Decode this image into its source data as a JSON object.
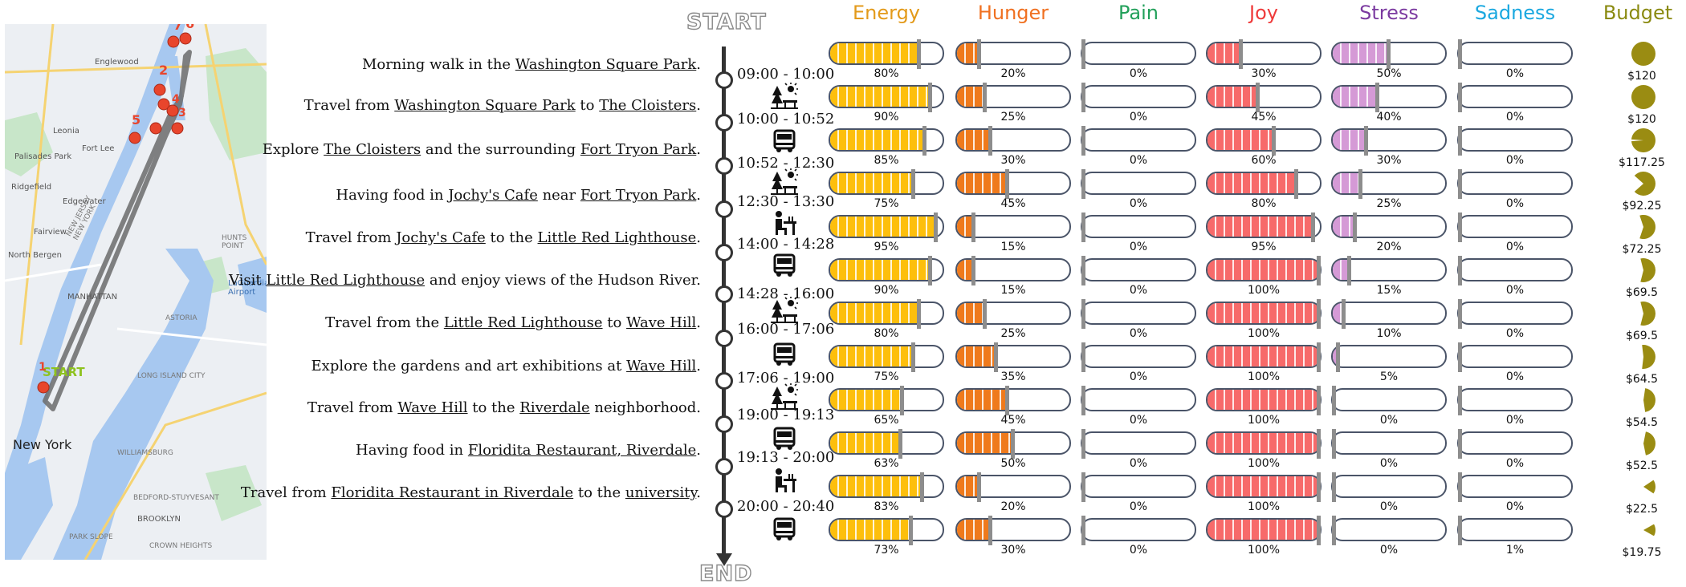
{
  "map": {
    "city_label": "New York",
    "start_label": "START",
    "markers": [
      "1",
      "2",
      "3",
      "4",
      "5",
      "6",
      "7"
    ],
    "place_labels": [
      "Englewood",
      "Leonia",
      "Palisades Park",
      "Fort Lee",
      "Ridgefield",
      "Edgewater",
      "Fairview",
      "North Bergen",
      "MANHATTAN",
      "LaGuardia Airport",
      "HUNTS POINT",
      "ASTORIA",
      "LONG ISLAND CITY",
      "WILLIAMSBURG",
      "BROOKLYN",
      "BEDFORD-STUYVESANT",
      "PARK SLOPE",
      "CROWN HEIGHTS",
      "NEW JERSEY NEW YORK"
    ]
  },
  "timeline": {
    "start": "START",
    "end": "END",
    "rows": [
      {
        "time": "09:00 - 10:00",
        "icon": "park-icon",
        "segments": [
          {
            "t": "Morning walk in the "
          },
          {
            "t": "Washington Square Park",
            "u": true
          },
          {
            "t": "."
          }
        ]
      },
      {
        "time": "10:00 - 10:52",
        "icon": "bus-icon",
        "segments": [
          {
            "t": "Travel from "
          },
          {
            "t": "Washington Square Park",
            "u": true
          },
          {
            "t": " to "
          },
          {
            "t": "The Cloisters",
            "u": true
          },
          {
            "t": "."
          }
        ]
      },
      {
        "time": "10:52 - 12:30",
        "icon": "park-icon",
        "segments": [
          {
            "t": "Explore "
          },
          {
            "t": "The Cloisters",
            "u": true
          },
          {
            "t": " and the surrounding "
          },
          {
            "t": "Fort Tryon Park",
            "u": true
          },
          {
            "t": "."
          }
        ]
      },
      {
        "time": "12:30 - 13:30",
        "icon": "dining-icon",
        "segments": [
          {
            "t": "Having food in "
          },
          {
            "t": "Jochy's Cafe",
            "u": true
          },
          {
            "t": " near "
          },
          {
            "t": "Fort Tryon Park",
            "u": true
          },
          {
            "t": "."
          }
        ]
      },
      {
        "time": "14:00 - 14:28",
        "icon": "bus-icon",
        "segments": [
          {
            "t": "Travel from "
          },
          {
            "t": "Jochy's Cafe",
            "u": true
          },
          {
            "t": " to the "
          },
          {
            "t": "Little Red Lighthouse",
            "u": true
          },
          {
            "t": "."
          }
        ]
      },
      {
        "time": "14:28 - 16:00",
        "icon": "park-icon",
        "segments": [
          {
            "t": "Visit "
          },
          {
            "t": "Little Red Lighthouse",
            "u": true
          },
          {
            "t": " and enjoy views of the Hudson River."
          }
        ]
      },
      {
        "time": "16:00 - 17:06",
        "icon": "bus-icon",
        "segments": [
          {
            "t": "Travel from the "
          },
          {
            "t": "Little Red Lighthouse",
            "u": true
          },
          {
            "t": " to "
          },
          {
            "t": "Wave Hill",
            "u": true
          },
          {
            "t": "."
          }
        ]
      },
      {
        "time": "17:06 - 19:00",
        "icon": "park-icon",
        "segments": [
          {
            "t": "Explore the gardens and art exhibitions at "
          },
          {
            "t": "Wave Hill",
            "u": true
          },
          {
            "t": "."
          }
        ]
      },
      {
        "time": "19:00 - 19:13",
        "icon": "bus-icon",
        "segments": [
          {
            "t": "Travel from "
          },
          {
            "t": "Wave Hill",
            "u": true
          },
          {
            "t": " to the "
          },
          {
            "t": "Riverdale",
            "u": true
          },
          {
            "t": " neighborhood."
          }
        ]
      },
      {
        "time": "19:13 - 20:00",
        "icon": "dining-icon",
        "segments": [
          {
            "t": "Having food in "
          },
          {
            "t": "Floridita Restaurant, Riverdale",
            "u": true
          },
          {
            "t": "."
          }
        ]
      },
      {
        "time": "20:00 - 20:40",
        "icon": "bus-icon",
        "segments": [
          {
            "t": "Travel from "
          },
          {
            "t": "Floridita Restaurant in Riverdale",
            "u": true
          },
          {
            "t": " to the "
          },
          {
            "t": "university",
            "u": true
          },
          {
            "t": "."
          }
        ]
      }
    ]
  },
  "emotions": {
    "headers": [
      {
        "label": "Energy",
        "color": "#e39a1a"
      },
      {
        "label": "Hunger",
        "color": "#f07020"
      },
      {
        "label": "Pain",
        "color": "#22a05a"
      },
      {
        "label": "Joy",
        "color": "#ef3b3b"
      },
      {
        "label": "Stress",
        "color": "#7b3aa0"
      },
      {
        "label": "Sadness",
        "color": "#1aa8e0"
      },
      {
        "label": "Budget",
        "color": "#8a8a10"
      }
    ],
    "fill_colors": [
      "#fdbf0c",
      "#ef7a1c",
      "#cccccc",
      "#f76a6a",
      "#d59ad6",
      "#3aa8e0"
    ],
    "rows": [
      {
        "vals": [
          80,
          20,
          0,
          30,
          50,
          0
        ],
        "labels": [
          "80%",
          "20%",
          "0%",
          "30%",
          "50%",
          "0%"
        ],
        "budget": "$120",
        "budget_frac": 1.0
      },
      {
        "vals": [
          90,
          25,
          0,
          45,
          40,
          0
        ],
        "labels": [
          "90%",
          "25%",
          "0%",
          "45%",
          "40%",
          "0%"
        ],
        "budget": "$120",
        "budget_frac": 1.0
      },
      {
        "vals": [
          85,
          30,
          0,
          60,
          30,
          0
        ],
        "labels": [
          "85%",
          "30%",
          "0%",
          "60%",
          "30%",
          "0%"
        ],
        "budget": "$117.25",
        "budget_frac": 0.977
      },
      {
        "vals": [
          75,
          45,
          0,
          80,
          25,
          0
        ],
        "labels": [
          "75%",
          "45%",
          "0%",
          "80%",
          "25%",
          "0%"
        ],
        "budget": "$92.25",
        "budget_frac": 0.769
      },
      {
        "vals": [
          95,
          15,
          0,
          95,
          20,
          0
        ],
        "labels": [
          "95%",
          "15%",
          "0%",
          "95%",
          "20%",
          "0%"
        ],
        "budget": "$72.25",
        "budget_frac": 0.602
      },
      {
        "vals": [
          90,
          15,
          0,
          100,
          15,
          0
        ],
        "labels": [
          "90%",
          "15%",
          "0%",
          "100%",
          "15%",
          "0%"
        ],
        "budget": "$69.5",
        "budget_frac": 0.579
      },
      {
        "vals": [
          80,
          25,
          0,
          100,
          10,
          0
        ],
        "labels": [
          "80%",
          "25%",
          "0%",
          "100%",
          "10%",
          "0%"
        ],
        "budget": "$69.5",
        "budget_frac": 0.579
      },
      {
        "vals": [
          75,
          35,
          0,
          100,
          5,
          0
        ],
        "labels": [
          "75%",
          "35%",
          "0%",
          "100%",
          "5%",
          "0%"
        ],
        "budget": "$64.5",
        "budget_frac": 0.5375
      },
      {
        "vals": [
          65,
          45,
          0,
          100,
          0,
          0
        ],
        "labels": [
          "65%",
          "45%",
          "0%",
          "100%",
          "0%",
          "0%"
        ],
        "budget": "$54.5",
        "budget_frac": 0.454
      },
      {
        "vals": [
          63,
          50,
          0,
          100,
          0,
          0
        ],
        "labels": [
          "63%",
          "50%",
          "0%",
          "100%",
          "0%",
          "0%"
        ],
        "budget": "$52.5",
        "budget_frac": 0.4375
      },
      {
        "vals": [
          83,
          20,
          0,
          100,
          0,
          0
        ],
        "labels": [
          "83%",
          "20%",
          "0%",
          "100%",
          "0%",
          "0%"
        ],
        "budget": "$22.5",
        "budget_frac": 0.1875
      },
      {
        "vals": [
          73,
          30,
          0,
          100,
          0,
          1
        ],
        "labels": [
          "73%",
          "30%",
          "0%",
          "100%",
          "0%",
          "1%"
        ],
        "budget": "$19.75",
        "budget_frac": 0.1646
      }
    ]
  }
}
